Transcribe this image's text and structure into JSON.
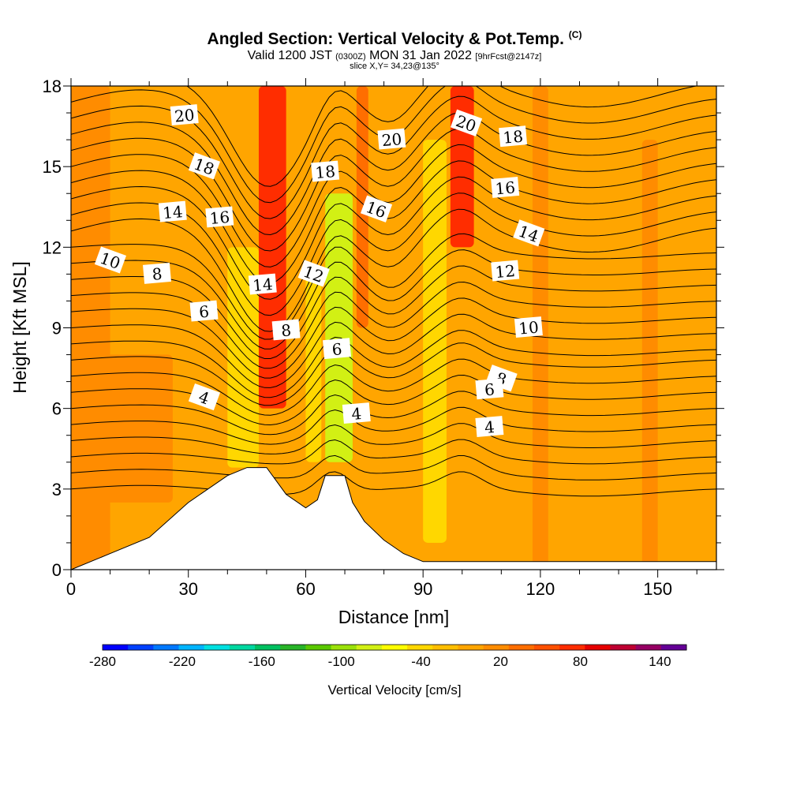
{
  "header": {
    "title": "Angled Section: Vertical Velocity & Pot.Temp.",
    "copyright": "(C)",
    "valid_prefix": "Valid 1200 JST",
    "valid_zulu": "(0300Z)",
    "valid_date": "MON 31 Jan 2022",
    "forecast": "[9hrFcst@2147z]",
    "slice": "slice X,Y= 34,23@135°"
  },
  "chart_data": {
    "type": "heatmap",
    "title": "Angled Section: Vertical Velocity & Pot.Temp.",
    "xlabel": "Distance [nm]",
    "ylabel": "Height [Kft MSL]",
    "xlim": [
      0,
      165
    ],
    "ylim": [
      0,
      18
    ],
    "xticks": [
      "0",
      "30",
      "60",
      "90",
      "120",
      "150"
    ],
    "yticks": [
      "0",
      "3",
      "6",
      "9",
      "12",
      "15",
      "18"
    ],
    "colorbar": {
      "label": "Vertical Velocity [cm/s]",
      "tick_labels": [
        "-280",
        "-220",
        "-160",
        "-100",
        "-40",
        "20",
        "80",
        "140"
      ],
      "range": [
        -280,
        160
      ],
      "step": 20,
      "colors": [
        "#0000ff",
        "#0040ff",
        "#0078ff",
        "#00b4ff",
        "#00e0e0",
        "#00d7a0",
        "#00c060",
        "#28b428",
        "#5ac800",
        "#9be10a",
        "#d2f014",
        "#ffff00",
        "#ffd700",
        "#ffbe00",
        "#ffa500",
        "#ff8c00",
        "#ff6e00",
        "#ff5000",
        "#ff2d00",
        "#e60000",
        "#be0032",
        "#960064",
        "#640096"
      ]
    },
    "terrain": [
      [
        0,
        0
      ],
      [
        10,
        0.6
      ],
      [
        20,
        1.2
      ],
      [
        30,
        2.5
      ],
      [
        40,
        3.5
      ],
      [
        45,
        3.8
      ],
      [
        50,
        3.8
      ],
      [
        55,
        2.8
      ],
      [
        60,
        2.3
      ],
      [
        63,
        2.6
      ],
      [
        65,
        3.5
      ],
      [
        70,
        3.5
      ],
      [
        72,
        2.5
      ],
      [
        75,
        1.8
      ],
      [
        80,
        1.1
      ],
      [
        85,
        0.6
      ],
      [
        90,
        0.3
      ],
      [
        165,
        0.3
      ]
    ],
    "velocity_cells": [
      {
        "x": [
          0,
          10
        ],
        "y": [
          0,
          18
        ],
        "value": 25
      },
      {
        "x": [
          3,
          26
        ],
        "y": [
          2.5,
          8
        ],
        "value": 35
      },
      {
        "x": [
          40,
          48
        ],
        "y": [
          3.8,
          12
        ],
        "value": -35
      },
      {
        "x": [
          48,
          55
        ],
        "y": [
          6,
          18
        ],
        "value": 80
      },
      {
        "x": [
          60,
          64
        ],
        "y": [
          4,
          11
        ],
        "value": -40
      },
      {
        "x": [
          65,
          72
        ],
        "y": [
          4,
          14
        ],
        "value": -80
      },
      {
        "x": [
          73,
          76
        ],
        "y": [
          9,
          18
        ],
        "value": 40
      },
      {
        "x": [
          90,
          96
        ],
        "y": [
          1,
          16
        ],
        "value": -40
      },
      {
        "x": [
          97,
          103
        ],
        "y": [
          12,
          18
        ],
        "value": 80
      },
      {
        "x": [
          118,
          122
        ],
        "y": [
          0,
          18
        ],
        "value": 30
      },
      {
        "x": [
          146,
          150
        ],
        "y": [
          0,
          16
        ],
        "value": 30
      }
    ],
    "potential_temperature": {
      "label_positions": [
        {
          "label": "20",
          "x": 29,
          "y": 16.9
        },
        {
          "label": "18",
          "x": 34,
          "y": 15
        },
        {
          "label": "14",
          "x": 26,
          "y": 13.3
        },
        {
          "label": "16",
          "x": 38,
          "y": 13.1
        },
        {
          "label": "10",
          "x": 10,
          "y": 11.5
        },
        {
          "label": "8",
          "x": 22,
          "y": 11
        },
        {
          "label": "6",
          "x": 34,
          "y": 9.6
        },
        {
          "label": "4",
          "x": 34,
          "y": 6.4
        },
        {
          "label": "14",
          "x": 49,
          "y": 10.6
        },
        {
          "label": "8",
          "x": 55,
          "y": 8.9
        },
        {
          "label": "12",
          "x": 62,
          "y": 11
        },
        {
          "label": "18",
          "x": 65,
          "y": 14.8
        },
        {
          "label": "20",
          "x": 82,
          "y": 16
        },
        {
          "label": "16",
          "x": 78,
          "y": 13.4
        },
        {
          "label": "6",
          "x": 68,
          "y": 8.2
        },
        {
          "label": "4",
          "x": 73,
          "y": 5.8
        },
        {
          "label": "20",
          "x": 101,
          "y": 16.6
        },
        {
          "label": "18",
          "x": 113,
          "y": 16.1
        },
        {
          "label": "16",
          "x": 111,
          "y": 14.2
        },
        {
          "label": "14",
          "x": 117,
          "y": 12.5
        },
        {
          "label": "12",
          "x": 111,
          "y": 11.1
        },
        {
          "label": "10",
          "x": 117,
          "y": 9
        },
        {
          "label": "8",
          "x": 110,
          "y": 7.1
        },
        {
          "label": "6",
          "x": 107,
          "y": 6.7
        },
        {
          "label": "4",
          "x": 107,
          "y": 5.3
        }
      ]
    }
  }
}
